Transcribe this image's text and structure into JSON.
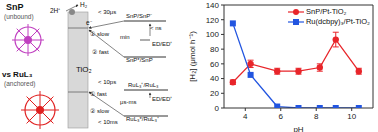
{
  "diagram": {
    "upper": {
      "name": "SnP",
      "state": "(unbound)",
      "oxidant": "2H⁺",
      "product": "H₂",
      "electron": "e⁻",
      "semiconductor": "TiO₂",
      "t1": "< 30μs",
      "level1": "SnP/SnP⁻",
      "step1": "①",
      "speed1": "slow",
      "t2": "< ns",
      "mix": "min",
      "donor": "ED/ED⁺",
      "level2": "SnP*/SnP",
      "step2": "②",
      "speed2": "fast"
    },
    "lower": {
      "name": "vs RuL₃",
      "state": "(anchored)",
      "t1": "< 10ps",
      "level1": "RuL₃⁺/RuL₃",
      "step1": "①",
      "speed1": "fast",
      "mid": "μs-ms",
      "donor": "ED/ED⁺",
      "t2": "< 10ms",
      "step2": "②",
      "speed2": "slow",
      "level2": "RuL₃*/RuL₃⁺"
    }
  },
  "chart_data": {
    "type": "line",
    "x_label": "pH",
    "y_label": "[H₂] (μmol h⁻¹)",
    "xlim": [
      2.8,
      11.2
    ],
    "xticks": [
      4,
      6,
      8,
      10
    ],
    "ylim": [
      0,
      140
    ],
    "yticks": [
      0,
      20,
      40,
      60,
      80,
      100,
      120,
      140
    ],
    "legend": "upper right",
    "x": [
      3.3,
      4.3,
      5.8,
      7,
      8.2,
      9.1,
      10.4
    ],
    "series": [
      {
        "name": "SnP/Pt-TiO₂",
        "color": "#e8252a",
        "marker": "circle",
        "values": [
          35,
          60,
          50,
          50,
          55,
          93,
          50
        ],
        "errors": [
          3,
          5,
          4,
          4,
          5,
          10,
          4
        ]
      },
      {
        "name": "Ru(dcbpy)₃/Pt-TiO₂",
        "color": "#2255e0",
        "marker": "square",
        "values": [
          115,
          45,
          2,
          0,
          0,
          0,
          0
        ]
      }
    ]
  }
}
